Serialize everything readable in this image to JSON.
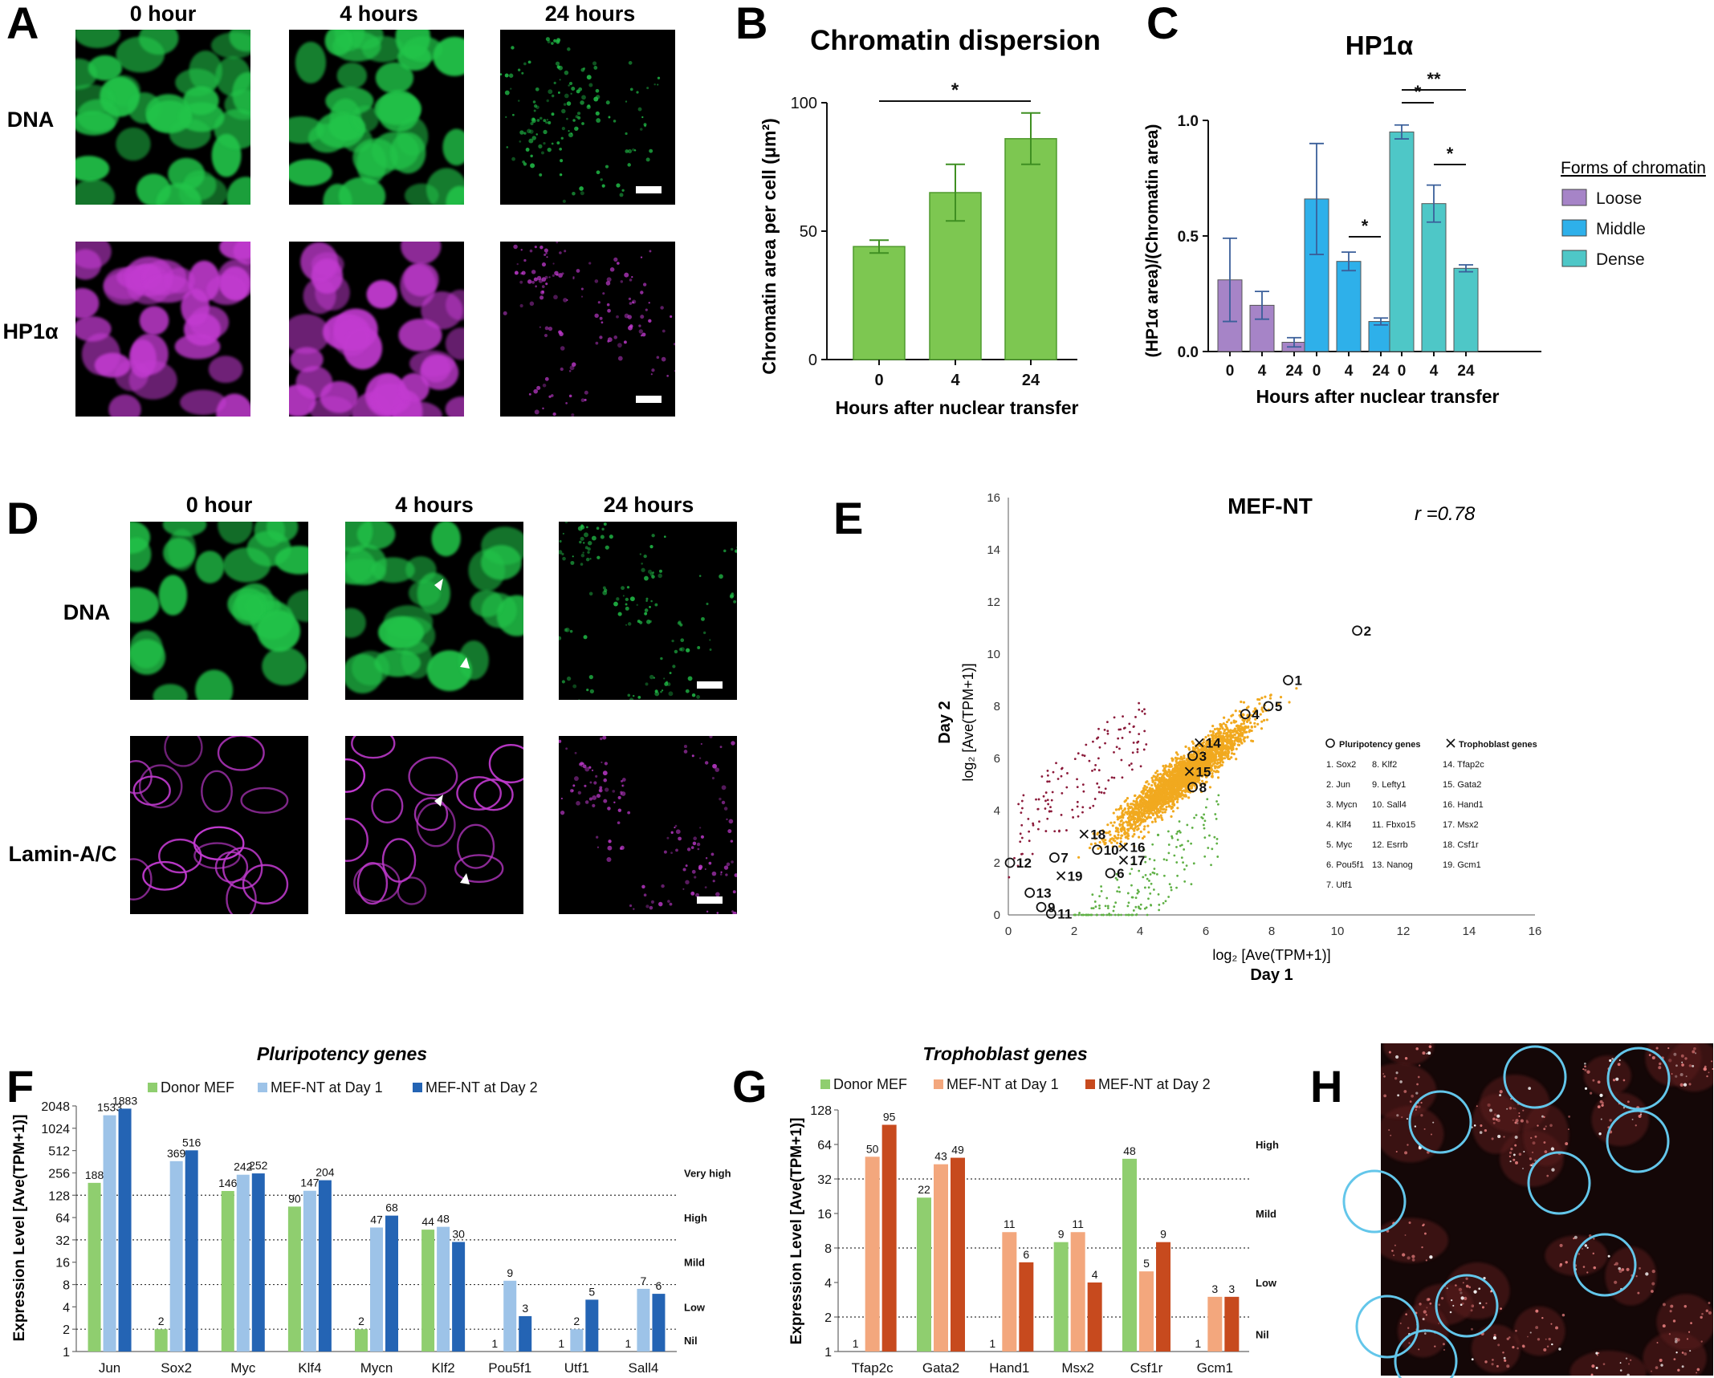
{
  "panels": {
    "A": {
      "letter": "A",
      "columns": [
        "0 hour",
        "4 hours",
        "24 hours"
      ],
      "rows": [
        "DNA",
        "HP1α"
      ],
      "colors": {
        "dna": "#22c44a",
        "hp1": "#c23ad0"
      }
    },
    "D": {
      "letter": "D",
      "columns": [
        "0 hour",
        "4 hours",
        "24 hours"
      ],
      "rows": [
        "DNA",
        "Lamin-A/C"
      ],
      "colors": {
        "dna": "#22c44a",
        "lamin": "#c23ad0"
      }
    },
    "H": {
      "letter": "H",
      "circle_color": "#63c6ea"
    }
  },
  "chart_data": [
    {
      "letter": "B",
      "type": "bar",
      "title": "Chromatin dispersion",
      "xlabel": "Hours after nuclear transfer",
      "ylabel": "Chromatin area per cell (μm²)",
      "ylim": [
        0,
        100
      ],
      "yticks": [
        "0",
        "50",
        "100"
      ],
      "categories": [
        "0",
        "4",
        "24"
      ],
      "values": [
        44,
        65,
        86
      ],
      "errors": [
        2.5,
        11,
        10
      ],
      "color": "#7dc751",
      "significance": [
        {
          "label": "*",
          "from": 0,
          "to": 2
        }
      ]
    },
    {
      "letter": "C",
      "type": "bar",
      "title": "HP1α",
      "xlabel": "Hours after nuclear transfer",
      "ylabel": "(HP1α area)/(Chromatin area)",
      "ylim": [
        0,
        1.0
      ],
      "yticks": [
        "0.0",
        "0.5",
        "1.0"
      ],
      "categories": [
        "0",
        "4",
        "24"
      ],
      "legend_title": "Forms of chromatin",
      "series": [
        {
          "name": "Loose",
          "color": "#a684c7",
          "values": [
            0.31,
            0.2,
            0.04
          ],
          "errors": [
            0.18,
            0.06,
            0.02
          ]
        },
        {
          "name": "Middle",
          "color": "#2eb0ea",
          "values": [
            0.66,
            0.39,
            0.13
          ],
          "errors": [
            0.24,
            0.04,
            0.015
          ]
        },
        {
          "name": "Dense",
          "color": "#4ec7c7",
          "values": [
            0.95,
            0.64,
            0.36
          ],
          "errors": [
            0.03,
            0.08,
            0.015
          ]
        }
      ],
      "significance": [
        {
          "label": "*",
          "series": 1,
          "from": 1,
          "to": 2
        },
        {
          "label": "*",
          "series": 2,
          "from": 0,
          "to": 1
        },
        {
          "label": "**",
          "series": 2,
          "from": 0,
          "to": 2
        },
        {
          "label": "*",
          "series": 2,
          "from": 1,
          "to": 2
        }
      ]
    },
    {
      "letter": "E",
      "type": "scatter",
      "title": "MEF-NT",
      "r_label": "r =0.78",
      "xlabel": "log₂ [Ave(TPM+1)]",
      "xlabel2": "Day 1",
      "ylabel": "log₂ [Ave(TPM+1)]",
      "ylabel2": "Day 2",
      "xlim": [
        0,
        16
      ],
      "ylim": [
        0,
        16
      ],
      "ticks": [
        "0",
        "2",
        "4",
        "6",
        "8",
        "10",
        "12",
        "14",
        "16"
      ],
      "colors": {
        "main": "#f1a91f",
        "up": "#8b1a3a",
        "down": "#5fb045"
      },
      "legend": {
        "pluripotency_title": "Pluripotency genes",
        "trophoblast_title": "Trophoblast genes",
        "pluripotency": [
          "1. Sox2",
          "2. Jun",
          "3. Mycn",
          "4. Klf4",
          "5. Myc",
          "6. Pou5f1",
          "7. Utf1",
          "8. Klf2",
          "9. Lefty1",
          "10. Sall4",
          "11. Fbxo15",
          "12. Esrrb",
          "13. Nanog"
        ],
        "trophoblast": [
          "14. Tfap2c",
          "15. Gata2",
          "16. Hand1",
          "17. Msx2",
          "18. Csf1r",
          "19. Gcm1"
        ]
      },
      "pluripotency_points": [
        {
          "label": "1",
          "x": 8.5,
          "y": 9.0
        },
        {
          "label": "2",
          "x": 10.6,
          "y": 10.9
        },
        {
          "label": "3",
          "x": 5.6,
          "y": 6.1
        },
        {
          "label": "4",
          "x": 7.2,
          "y": 7.7
        },
        {
          "label": "5",
          "x": 7.9,
          "y": 8.0
        },
        {
          "label": "6",
          "x": 3.1,
          "y": 1.6
        },
        {
          "label": "7",
          "x": 1.4,
          "y": 2.2
        },
        {
          "label": "8",
          "x": 5.6,
          "y": 4.9
        },
        {
          "label": "9",
          "x": 1.0,
          "y": 0.3
        },
        {
          "label": "10",
          "x": 2.7,
          "y": 2.5
        },
        {
          "label": "11",
          "x": 1.3,
          "y": 0.05
        },
        {
          "label": "12",
          "x": 0.05,
          "y": 2.0
        },
        {
          "label": "13",
          "x": 0.65,
          "y": 0.85
        }
      ],
      "trophoblast_points": [
        {
          "label": "14",
          "x": 5.8,
          "y": 6.6
        },
        {
          "label": "15",
          "x": 5.5,
          "y": 5.5
        },
        {
          "label": "16",
          "x": 3.5,
          "y": 2.6
        },
        {
          "label": "17",
          "x": 3.5,
          "y": 2.1
        },
        {
          "label": "18",
          "x": 2.3,
          "y": 3.1
        },
        {
          "label": "19",
          "x": 1.6,
          "y": 1.5
        }
      ]
    },
    {
      "letter": "F",
      "type": "bar",
      "title": "Pluripotency genes",
      "ylabel": "Expression Level [Ave(TPM+1)]",
      "scale": "log2",
      "ylim": [
        1,
        2048
      ],
      "yticks": [
        "1",
        "2",
        "4",
        "8",
        "16",
        "32",
        "64",
        "128",
        "256",
        "512",
        "1024",
        "2048"
      ],
      "thresholds": [
        {
          "label": "Nil",
          "value": 2
        },
        {
          "label": "Low",
          "value": 8
        },
        {
          "label": "Mild",
          "value": 32
        },
        {
          "label": "High",
          "value": 128
        },
        {
          "label": "Very high",
          "value": 512
        }
      ],
      "threshold_lines": [
        2,
        8,
        32,
        128
      ],
      "categories": [
        "Jun",
        "Sox2",
        "Myc",
        "Klf4",
        "Mycn",
        "Klf2",
        "Pou5f1",
        "Utf1",
        "Sall4"
      ],
      "series": [
        {
          "name": "Donor MEF",
          "color": "#8fce6f",
          "values": [
            188,
            2,
            146,
            90,
            2,
            44,
            1,
            1,
            1
          ],
          "labels": [
            "188",
            "2",
            "146",
            "90",
            "2",
            "44",
            "1",
            "1",
            "1"
          ]
        },
        {
          "name": "MEF-NT at Day 1",
          "color": "#9dc3e8",
          "values": [
            1533,
            369,
            242,
            147,
            47,
            48,
            9,
            2,
            7
          ],
          "labels": [
            "1533",
            "369",
            "242",
            "147",
            "47",
            "48",
            "9",
            "2",
            "7"
          ]
        },
        {
          "name": "MEF-NT at Day 2",
          "color": "#2464b4",
          "values": [
            1883,
            516,
            252,
            204,
            68,
            30,
            3,
            5,
            6
          ],
          "labels": [
            "1883",
            "516",
            "252",
            "204",
            "68",
            "30",
            "3",
            "5",
            "6"
          ]
        }
      ]
    },
    {
      "letter": "G",
      "type": "bar",
      "title": "Trophoblast genes",
      "ylabel": "Expression Level [Ave(TPM+1)]",
      "scale": "log2",
      "ylim": [
        1,
        128
      ],
      "yticks": [
        "1",
        "2",
        "4",
        "8",
        "16",
        "32",
        "64",
        "128"
      ],
      "thresholds": [
        {
          "label": "Nil",
          "value": 2
        },
        {
          "label": "Low",
          "value": 8
        },
        {
          "label": "Mild",
          "value": 32
        },
        {
          "label": "High",
          "value": 128
        }
      ],
      "threshold_lines": [
        2,
        8,
        32
      ],
      "categories": [
        "Tfap2c",
        "Gata2",
        "Hand1",
        "Msx2",
        "Csf1r",
        "Gcm1"
      ],
      "series": [
        {
          "name": "Donor MEF",
          "color": "#8fce6f",
          "values": [
            1,
            22,
            1,
            9,
            48,
            1
          ],
          "labels": [
            "1",
            "22",
            "1",
            "9",
            "48",
            "1"
          ]
        },
        {
          "name": "MEF-NT at Day 1",
          "color": "#f3a77d",
          "values": [
            50,
            43,
            11,
            11,
            5,
            3
          ],
          "labels": [
            "50",
            "43",
            "11",
            "11",
            "5",
            "3"
          ]
        },
        {
          "name": "MEF-NT at Day 2",
          "color": "#c74a1e",
          "values": [
            95,
            49,
            6,
            4,
            9,
            3
          ],
          "labels": [
            "95",
            "49",
            "6",
            "4",
            "9",
            "3"
          ]
        }
      ]
    }
  ]
}
